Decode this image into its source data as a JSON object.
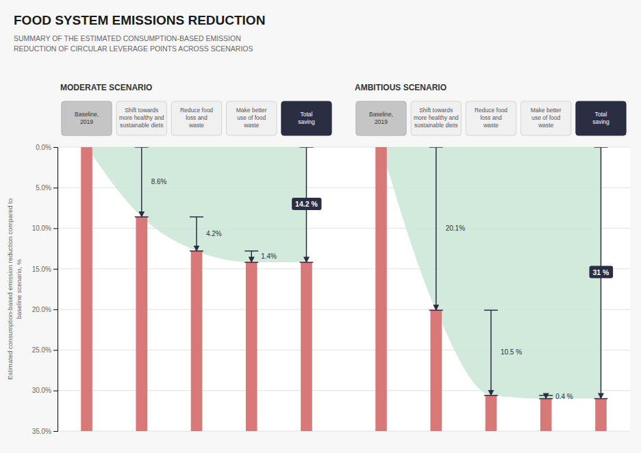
{
  "chart_data": {
    "type": "waterfall",
    "title": "FOOD SYSTEM EMISSIONS REDUCTION",
    "subtitle": "SUMMARY OF THE ESTIMATED CONSUMPTION-BASED EMISSION\nREDUCTION OF CIRCULAR LEVERAGE POINTS ACROSS SCENARIOS",
    "ylabel": "Estimated consumption-based emission reduction compared to\nbaseline scenario, %",
    "categories": [
      "Baseline,\n2019",
      "Shift towards\nmore healthy and\nsustainable diets",
      "Reduce food\nloss and\nwaste",
      "Make better\nuse of food\nwaste",
      "Total\nsaving"
    ],
    "series": [
      {
        "name": "MODERATE SCENARIO",
        "values": [
          0,
          8.6,
          4.2,
          1.4,
          14.2
        ],
        "value_labels": [
          null,
          "8.6%",
          "4.2%",
          "1.4%",
          "14.2 %"
        ]
      },
      {
        "name": "AMBITIOUS SCENARIO",
        "values": [
          0,
          20.1,
          10.5,
          0.4,
          31
        ],
        "value_labels": [
          null,
          "20.1%",
          "10.5 %",
          "0.4 %",
          "31 %"
        ]
      }
    ],
    "color": "#d97878",
    "ylim": [
      35,
      0
    ],
    "yticks": [
      {
        "value": 0,
        "label": "0.0%"
      },
      {
        "value": 5,
        "label": "5.0%"
      },
      {
        "value": 10,
        "label": "10.0%"
      },
      {
        "value": 15,
        "label": "15.0%"
      },
      {
        "value": 20,
        "label": "20.0%"
      },
      {
        "value": 25,
        "label": "25.0%"
      },
      {
        "value": 30,
        "label": "30.0%"
      },
      {
        "value": 35,
        "label": "35.0%"
      }
    ],
    "grid": true,
    "data_labels": true
  }
}
